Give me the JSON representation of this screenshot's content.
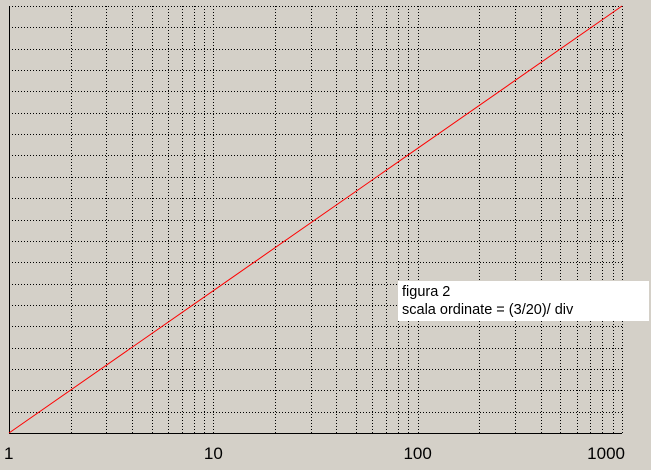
{
  "chart_data": {
    "type": "line",
    "x_scale": "log",
    "xlim": [
      1,
      1000
    ],
    "ylim": [
      0,
      3
    ],
    "y_divisions": 20,
    "x_tick_labels": [
      "1",
      "10",
      "100",
      "1000"
    ],
    "x_ticks": [
      1,
      10,
      100,
      1000
    ],
    "grid": true,
    "series": [
      {
        "x": [
          1,
          10,
          100,
          1000
        ],
        "y": [
          0,
          1,
          2,
          3
        ],
        "color": "#ff0000"
      }
    ],
    "annotation": {
      "line1": "figura 2",
      "line2": "scala ordinate = (3/20)/ div"
    }
  }
}
